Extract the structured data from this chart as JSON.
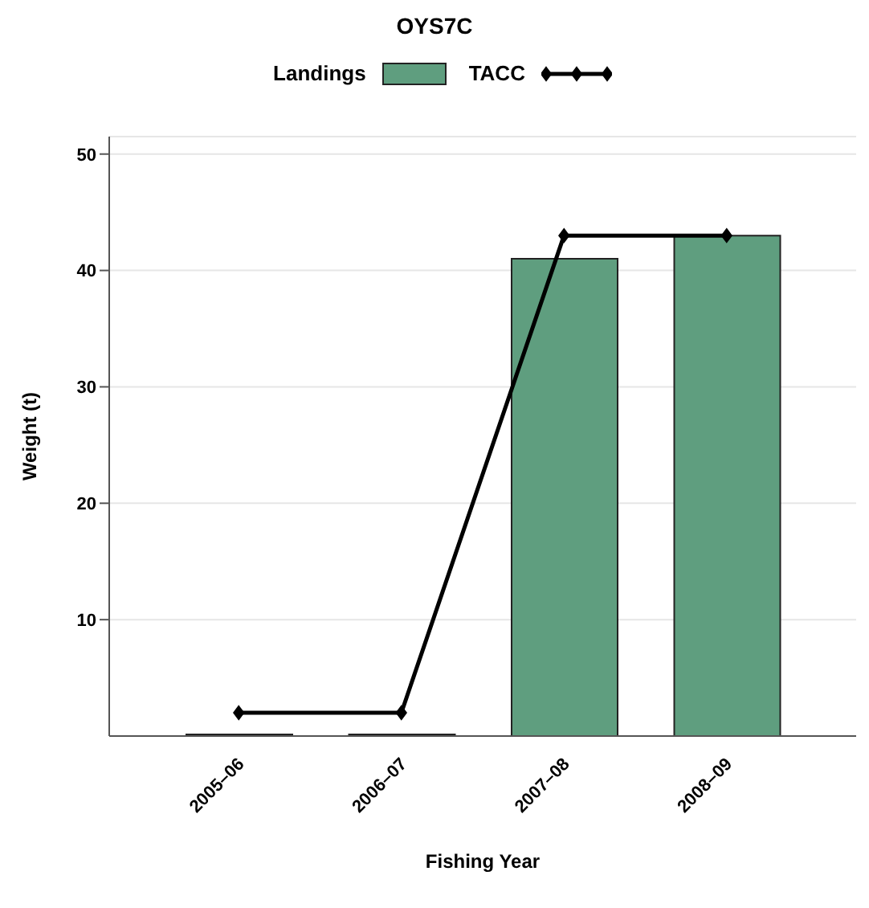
{
  "chart_data": {
    "type": "bar",
    "title": "OYS7C",
    "xlabel": "Fishing Year",
    "ylabel": "Weight (t)",
    "categories": [
      "2005–06",
      "2006–07",
      "2007–08",
      "2008–09"
    ],
    "series": [
      {
        "name": "Landings",
        "color": "#5f9e7f",
        "values": [
          0,
          0,
          41,
          43
        ]
      },
      {
        "name": "TACC",
        "type": "line",
        "color": "#000000",
        "values": [
          2,
          2,
          43,
          43
        ],
        "marker": "diamond"
      }
    ],
    "ylim": [
      0,
      51.5
    ],
    "yticks": [
      10,
      20,
      30,
      40,
      50
    ],
    "grid": "y",
    "legend": "top"
  }
}
